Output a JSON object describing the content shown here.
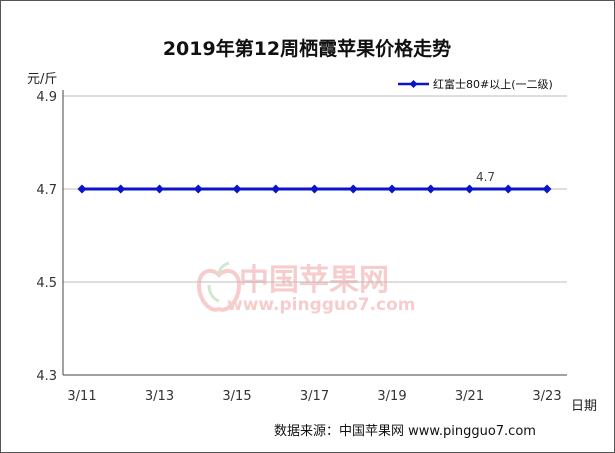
{
  "chart_data": {
    "type": "line",
    "title": "2019年第12周栖霞苹果价格走势",
    "ylabel": "元/斤",
    "xlabel": "日期",
    "ylim": [
      4.3,
      4.9
    ],
    "yticks": [
      "4.9",
      "4.7",
      "4.5",
      "4.3"
    ],
    "categories": [
      "3/11",
      "3/12",
      "3/13",
      "3/14",
      "3/15",
      "3/16",
      "3/17",
      "3/18",
      "3/19",
      "3/20",
      "3/21",
      "3/22",
      "3/23"
    ],
    "xtick_labels": [
      "3/11",
      "3/13",
      "3/15",
      "3/17",
      "3/19",
      "3/21",
      "3/23"
    ],
    "series": [
      {
        "name": "红富士80#以上(一二级)",
        "values": [
          4.7,
          4.7,
          4.7,
          4.7,
          4.7,
          4.7,
          4.7,
          4.7,
          4.7,
          4.7,
          4.7,
          4.7,
          4.7
        ],
        "color": "#0a14c8"
      }
    ],
    "annotations": [
      {
        "category": "3/21",
        "text": "4.7"
      }
    ],
    "grid": "horizontal",
    "legend": "top-right",
    "watermark": {
      "brand": "中国苹果网",
      "url": "www.pingguo7.com"
    },
    "source": "数据来源：中国苹果网 www.pingguo7.com"
  }
}
